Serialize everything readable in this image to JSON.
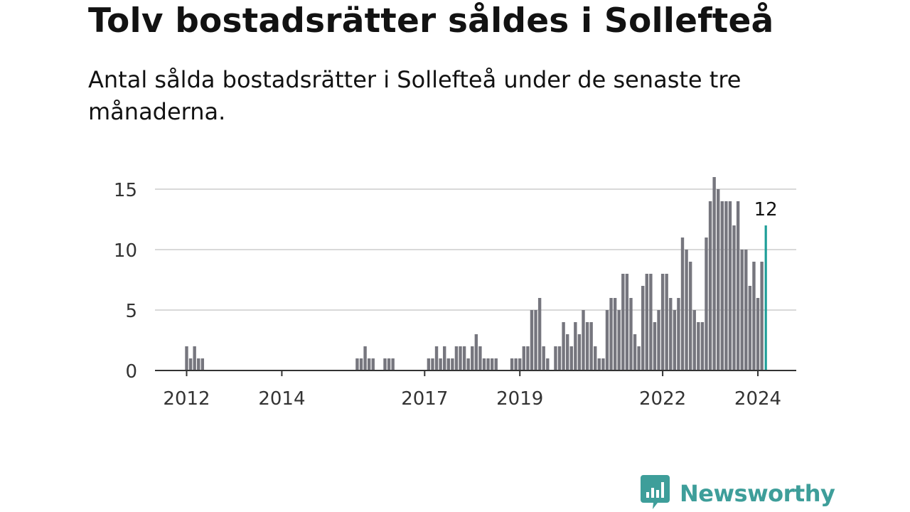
{
  "title": "Tolv bostadsrätter såldes i Sollefteå",
  "subtitle": "Antal sålda bostadsrätter i Sollefteå under de senaste tre månaderna.",
  "brand": {
    "name": "Newsworthy",
    "logo_icon": "bar-chart-speech-bubble-icon",
    "color": "#3e9e9a"
  },
  "chart_data": {
    "type": "bar",
    "title": "Tolv bostadsrätter såldes i Sollefteå",
    "xlabel": "",
    "ylabel": "",
    "ylim": [
      0,
      16.5
    ],
    "yticks": [
      0,
      5,
      10,
      15
    ],
    "xticks": [
      "2012",
      "2014",
      "2017",
      "2019",
      "2022",
      "2024"
    ],
    "grid": true,
    "bar_color": "#76767e",
    "highlight_color": "#1e9e98",
    "highlight_label": "12",
    "x": [
      "2012-01",
      "2012-02",
      "2012-03",
      "2012-04",
      "2012-05",
      "2012-06",
      "2012-07",
      "2012-08",
      "2012-09",
      "2012-10",
      "2012-11",
      "2012-12",
      "2013-01",
      "2013-02",
      "2013-03",
      "2013-04",
      "2013-05",
      "2013-06",
      "2013-07",
      "2013-08",
      "2013-09",
      "2013-10",
      "2013-11",
      "2013-12",
      "2014-01",
      "2014-02",
      "2014-03",
      "2014-04",
      "2014-05",
      "2014-06",
      "2014-07",
      "2014-08",
      "2014-09",
      "2014-10",
      "2014-11",
      "2014-12",
      "2015-01",
      "2015-02",
      "2015-03",
      "2015-04",
      "2015-05",
      "2015-06",
      "2015-07",
      "2015-08",
      "2015-09",
      "2015-10",
      "2015-11",
      "2015-12",
      "2016-01",
      "2016-02",
      "2016-03",
      "2016-04",
      "2016-05",
      "2016-06",
      "2016-07",
      "2016-08",
      "2016-09",
      "2016-10",
      "2016-11",
      "2016-12",
      "2017-01",
      "2017-02",
      "2017-03",
      "2017-04",
      "2017-05",
      "2017-06",
      "2017-07",
      "2017-08",
      "2017-09",
      "2017-10",
      "2017-11",
      "2017-12",
      "2018-01",
      "2018-02",
      "2018-03",
      "2018-04",
      "2018-05",
      "2018-06",
      "2018-07",
      "2018-08",
      "2018-09",
      "2018-10",
      "2018-11",
      "2018-12",
      "2019-01",
      "2019-02",
      "2019-03",
      "2019-04",
      "2019-05",
      "2019-06",
      "2019-07",
      "2019-08",
      "2019-09",
      "2019-10",
      "2019-11",
      "2019-12",
      "2020-01",
      "2020-02",
      "2020-03",
      "2020-04",
      "2020-05",
      "2020-06",
      "2020-07",
      "2020-08",
      "2020-09",
      "2020-10",
      "2020-11",
      "2020-12",
      "2021-01",
      "2021-02",
      "2021-03",
      "2021-04",
      "2021-05",
      "2021-06",
      "2021-07",
      "2021-08",
      "2021-09",
      "2021-10",
      "2021-11",
      "2021-12",
      "2022-01",
      "2022-02",
      "2022-03",
      "2022-04",
      "2022-05",
      "2022-06",
      "2022-07",
      "2022-08",
      "2022-09",
      "2022-10",
      "2022-11",
      "2022-12",
      "2023-01",
      "2023-02",
      "2023-03",
      "2023-04",
      "2023-05",
      "2023-06",
      "2023-07",
      "2023-08",
      "2023-09",
      "2023-10",
      "2023-11",
      "2023-12",
      "2024-01",
      "2024-02",
      "2024-03"
    ],
    "values": [
      2,
      1,
      2,
      1,
      1,
      0,
      0,
      0,
      0,
      0,
      0,
      0,
      0,
      0,
      0,
      0,
      0,
      0,
      0,
      0,
      0,
      0,
      0,
      0,
      0,
      0,
      0,
      0,
      0,
      0,
      0,
      0,
      0,
      0,
      0,
      0,
      0,
      0,
      0,
      0,
      0,
      0,
      0,
      1,
      1,
      2,
      1,
      1,
      0,
      0,
      1,
      1,
      1,
      0,
      0,
      0,
      0,
      0,
      0,
      0,
      0,
      1,
      1,
      2,
      1,
      2,
      1,
      1,
      2,
      2,
      2,
      1,
      2,
      3,
      2,
      1,
      1,
      1,
      1,
      0,
      0,
      0,
      1,
      1,
      1,
      2,
      2,
      5,
      5,
      6,
      2,
      1,
      0,
      2,
      2,
      4,
      3,
      2,
      4,
      3,
      5,
      4,
      4,
      2,
      1,
      1,
      5,
      6,
      6,
      5,
      8,
      8,
      6,
      3,
      2,
      7,
      8,
      8,
      4,
      5,
      8,
      8,
      6,
      5,
      6,
      11,
      10,
      9,
      5,
      4,
      4,
      11,
      14,
      16,
      15,
      14,
      14,
      14,
      12,
      14,
      10,
      10,
      7,
      9,
      6,
      9,
      12
    ]
  }
}
